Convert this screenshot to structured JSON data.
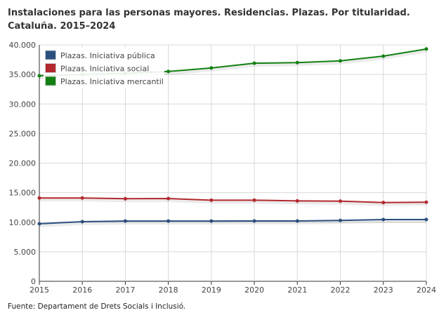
{
  "chart_data": {
    "type": "line",
    "title": "Instalaciones para las personas mayores. Residencias. Plazas. Por titularidad. Cataluña. 2015–2024",
    "source": "Fuente: Departament de Drets Socials i Inclusió.",
    "x": [
      2015,
      2016,
      2017,
      2018,
      2019,
      2020,
      2021,
      2022,
      2023,
      2024
    ],
    "ylim": [
      0,
      40000
    ],
    "yticks": [
      0,
      5000,
      10000,
      15000,
      20000,
      25000,
      30000,
      35000,
      40000
    ],
    "ytick_labels": [
      "0",
      "5.000",
      "10.000",
      "15.000",
      "20.000",
      "25.000",
      "30.000",
      "35.000",
      "40.000"
    ],
    "grid": true,
    "legend": "top-left",
    "series": [
      {
        "name": "Plazas. Iniciativa pública",
        "color": "#2b4f7e",
        "values": [
          9730,
          10090,
          10200,
          10200,
          10200,
          10210,
          10210,
          10300,
          10450,
          10450
        ]
      },
      {
        "name": "Plazas. Iniciativa social",
        "color": "#b2292e",
        "values": [
          14090,
          14100,
          13970,
          14000,
          13730,
          13730,
          13600,
          13560,
          13330,
          13380
        ]
      },
      {
        "name": "Plazas. Iniciativa mercantil",
        "color": "#128012",
        "values": [
          34780,
          35000,
          35200,
          35500,
          36100,
          36900,
          37000,
          37300,
          38100,
          39300
        ]
      }
    ]
  }
}
